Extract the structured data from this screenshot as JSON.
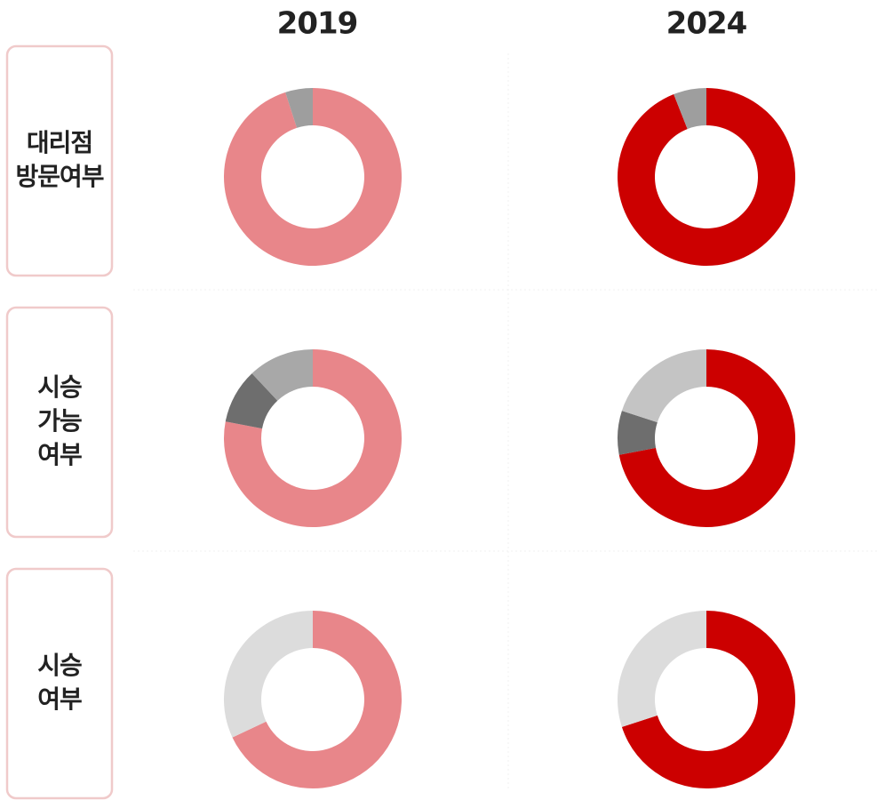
{
  "columns": [
    "2019",
    "2024"
  ],
  "rows": [
    {
      "label": [
        "대리점",
        "방문여부"
      ]
    },
    {
      "label": [
        "시승",
        "가능",
        "여부"
      ]
    },
    {
      "label": [
        "시승",
        "여부"
      ]
    }
  ],
  "chart_data": [
    {
      "type": "donut",
      "values": [
        95,
        5
      ],
      "colors": [
        "#e8868a",
        "#9e9e9e"
      ]
    },
    {
      "type": "donut",
      "values": [
        94,
        6
      ],
      "colors": [
        "#cc0000",
        "#9e9e9e"
      ]
    },
    {
      "type": "donut",
      "values": [
        78,
        10,
        12
      ],
      "colors": [
        "#e8868a",
        "#6e6e6e",
        "#a8a8a8"
      ]
    },
    {
      "type": "donut",
      "values": [
        72,
        8,
        20
      ],
      "colors": [
        "#cc0000",
        "#6e6e6e",
        "#c4c4c4"
      ]
    },
    {
      "type": "donut",
      "values": [
        68,
        32
      ],
      "colors": [
        "#e8868a",
        "#dcdcdc"
      ]
    },
    {
      "type": "donut",
      "values": [
        70,
        30
      ],
      "colors": [
        "#cc0000",
        "#dcdcdc"
      ]
    }
  ]
}
